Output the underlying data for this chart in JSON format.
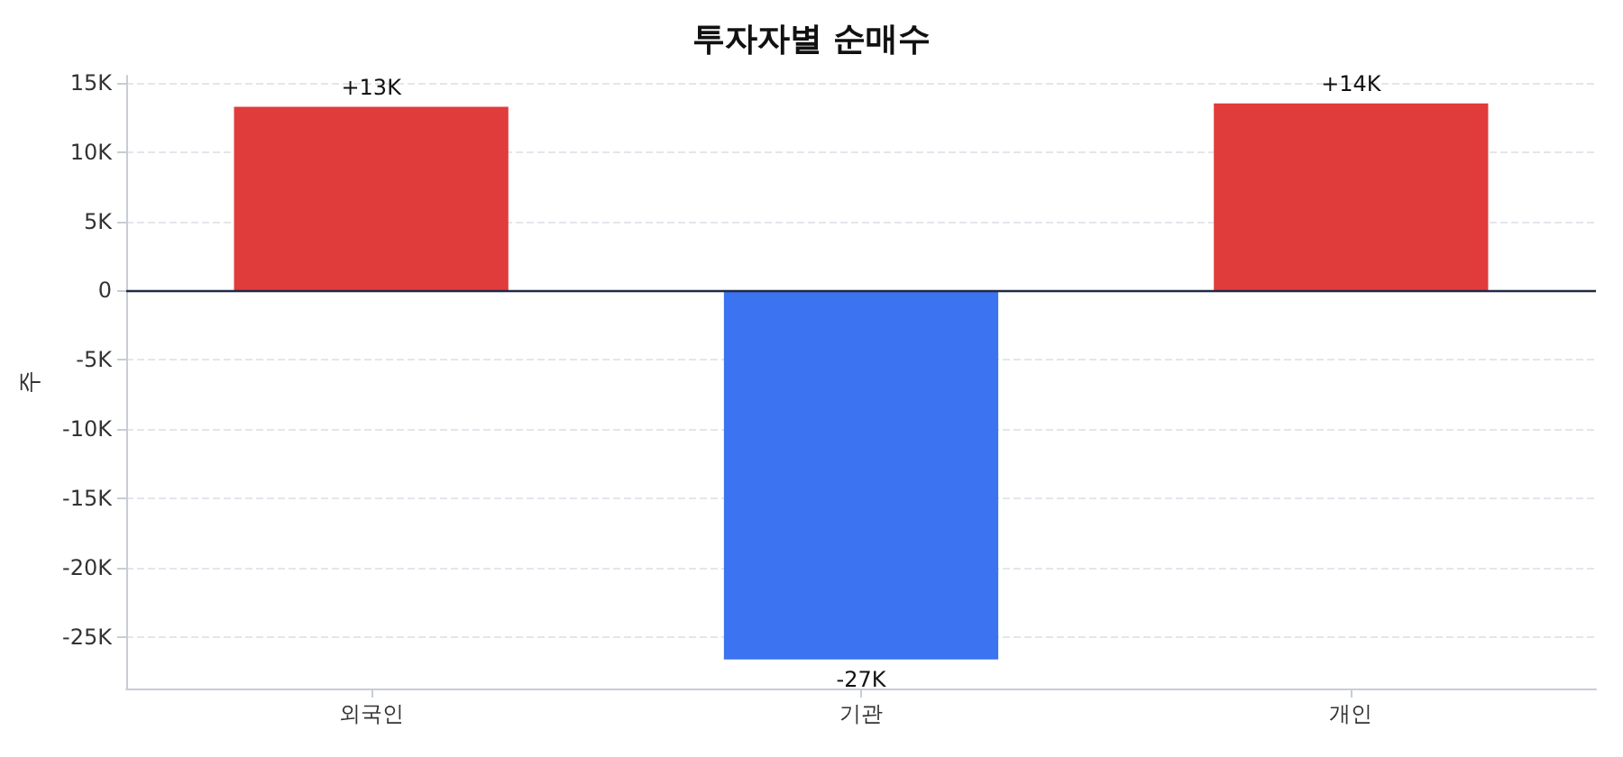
{
  "chart_data": {
    "type": "bar",
    "title": "투자자별 순매수",
    "ylabel": "주",
    "categories": [
      "외국인",
      "기관",
      "개인"
    ],
    "values": [
      13250,
      -26600,
      13500
    ],
    "colors": [
      "#e03c3c",
      "#3b73f0",
      "#e03c3c"
    ],
    "value_labels": [
      "+13K",
      "-27K",
      "+14K"
    ],
    "ylim": [
      -28700,
      15500
    ],
    "yticks": [
      {
        "value": -25000,
        "label": "-25K"
      },
      {
        "value": -20000,
        "label": "-20K"
      },
      {
        "value": -15000,
        "label": "-15K"
      },
      {
        "value": -10000,
        "label": "-10K"
      },
      {
        "value": -5000,
        "label": "-5K"
      },
      {
        "value": 0,
        "label": "0"
      },
      {
        "value": 5000,
        "label": "5K"
      },
      {
        "value": 10000,
        "label": "10K"
      },
      {
        "value": 15000,
        "label": "15K"
      }
    ],
    "grid": "y",
    "ref_lines": [
      {
        "axis": "y",
        "value": 0,
        "color": "#1f2a44"
      }
    ]
  }
}
